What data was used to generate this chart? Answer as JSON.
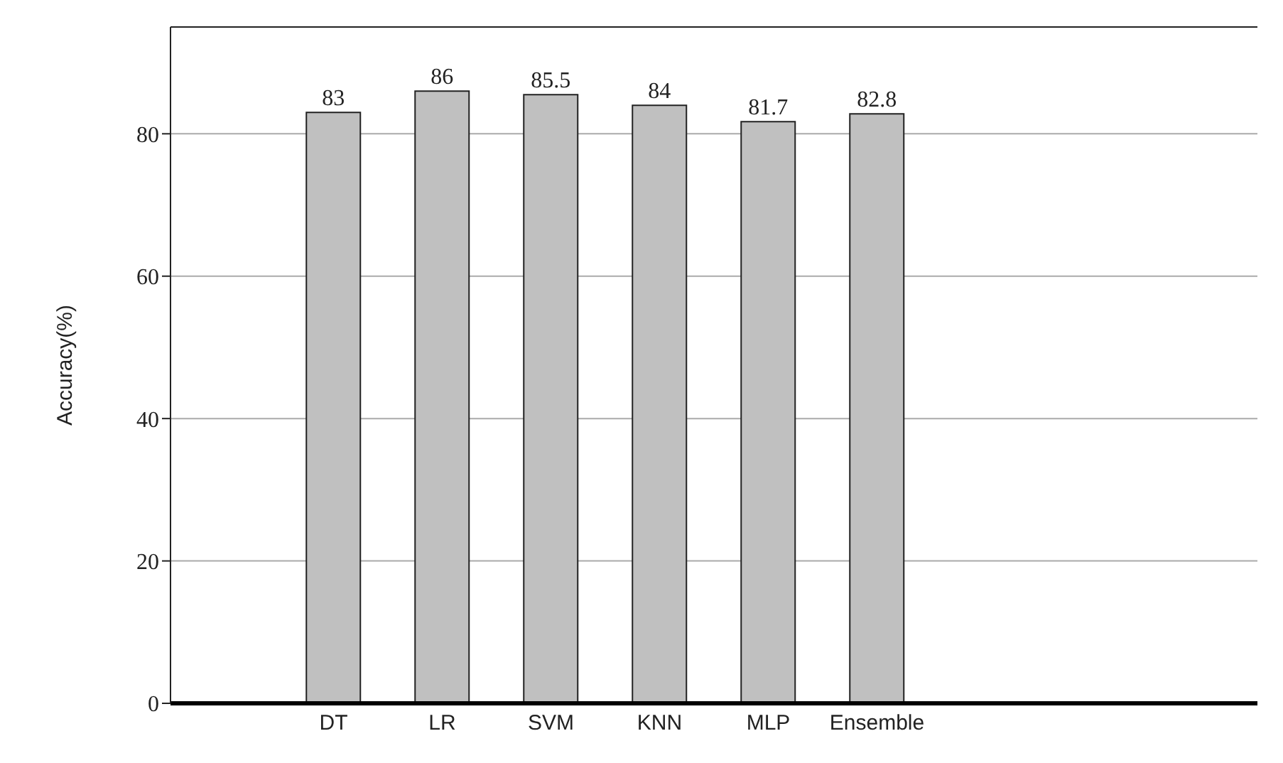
{
  "chart_data": {
    "type": "bar",
    "ylabel": "Accuracy(%)",
    "categories": [
      null,
      "DT",
      "LR",
      "SVM",
      "KNN",
      "MLP",
      "Ensemble",
      null,
      null,
      null
    ],
    "values": [
      null,
      83,
      86,
      85.5,
      84,
      81.7,
      82.8,
      null,
      null,
      null
    ],
    "color": "#c0c0c0",
    "ylim": [
      0,
      95
    ],
    "yticks": [
      0,
      20,
      40,
      60,
      80
    ],
    "grid": "y",
    "data_labels": true
  }
}
